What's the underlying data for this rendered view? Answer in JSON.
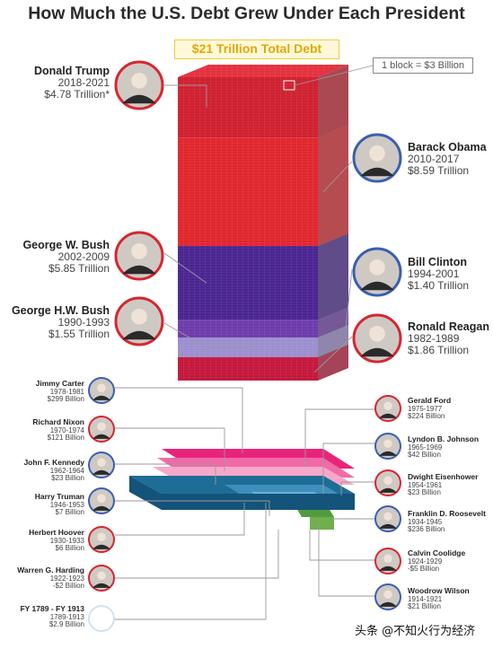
{
  "title": "How Much the U.S. Debt Grew Under Each President",
  "total_label": "$21 Trillion Total Debt",
  "block_legend": "1 block = $3 Billion",
  "watermark": "头条 @不知火行为经济",
  "colors": {
    "republican": "#d62631",
    "democrat": "#4e2a96",
    "tower_side": "#9b1b22",
    "badge": "#e2a800"
  },
  "chart_data": {
    "type": "stacked-blocks",
    "unit": "1 block = $3 Billion",
    "title": "How Much the U.S. Debt Grew Under Each President",
    "total": "$21 Trillion Total Debt",
    "presidents": [
      {
        "name": "Donald Trump",
        "years": "2018-2021",
        "amount": "$4.78 Trillion*",
        "value_billion": 4780
      },
      {
        "name": "Barack Obama",
        "years": "2010-2017",
        "amount": "$8.59 Trillion",
        "value_billion": 8590
      },
      {
        "name": "George W. Bush",
        "years": "2002-2009",
        "amount": "$5.85 Trillion",
        "value_billion": 5850
      },
      {
        "name": "Bill Clinton",
        "years": "1994-2001",
        "amount": "$1.40 Trillion",
        "value_billion": 1400
      },
      {
        "name": "George H.W. Bush",
        "years": "1990-1993",
        "amount": "$1.55 Trillion",
        "value_billion": 1550
      },
      {
        "name": "Ronald Reagan",
        "years": "1982-1989",
        "amount": "$1.86 Trillion",
        "value_billion": 1860
      },
      {
        "name": "Jimmy Carter",
        "years": "1978-1981",
        "amount": "$299 Billion",
        "value_billion": 299
      },
      {
        "name": "Gerald Ford",
        "years": "1975-1977",
        "amount": "$224 Billion",
        "value_billion": 224
      },
      {
        "name": "Richard Nixon",
        "years": "1970-1974",
        "amount": "$121 Billion",
        "value_billion": 121
      },
      {
        "name": "Lyndon B. Johnson",
        "years": "1965-1969",
        "amount": "$42 Billion",
        "value_billion": 42
      },
      {
        "name": "John F. Kennedy",
        "years": "1962-1964",
        "amount": "$23 Billion",
        "value_billion": 23
      },
      {
        "name": "Dwight Eisenhower",
        "years": "1954-1961",
        "amount": "$23 Billion",
        "value_billion": 23
      },
      {
        "name": "Harry Truman",
        "years": "1946-1953",
        "amount": "$7 Billion",
        "value_billion": 7
      },
      {
        "name": "Franklin D. Roosevelt",
        "years": "1934-1945",
        "amount": "$236 Billion",
        "value_billion": 236
      },
      {
        "name": "Herbert Hoover",
        "years": "1930-1933",
        "amount": "$6 Billion",
        "value_billion": 6
      },
      {
        "name": "Calvin Coolidge",
        "years": "1924-1929",
        "amount": "-$5 Billion",
        "value_billion": -5
      },
      {
        "name": "Warren G. Harding",
        "years": "1922-1923",
        "amount": "-$2 Billion",
        "value_billion": -2
      },
      {
        "name": "Woodrow Wilson",
        "years": "1914-1921",
        "amount": "$21 Billion",
        "value_billion": 21
      },
      {
        "name": "FY 1789 - FY 1913",
        "years": "1789-1913",
        "amount": "$2.9 Billion",
        "value_billion": 2.9
      }
    ]
  }
}
